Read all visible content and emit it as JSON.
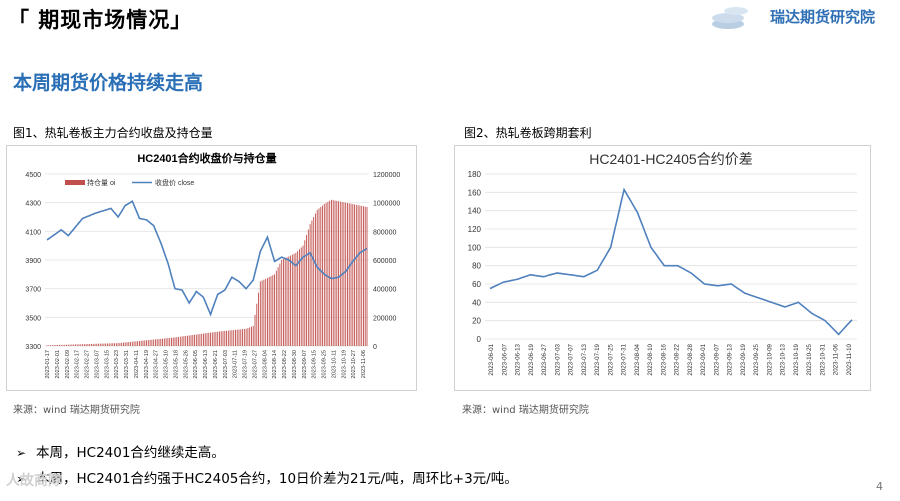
{
  "header": {
    "title": "「 期现市场情况」",
    "logo_text": "瑞达期货研究院"
  },
  "subtitle": "本周期货价格持续走高",
  "figures": {
    "fig1_caption": "图1、热轧卷板主力合约收盘及持仓量",
    "fig2_caption": "图2、热轧卷板跨期套利",
    "fig1_source": "来源：wind    瑞达期货研究院",
    "fig2_source": "来源：wind    瑞达期货研究院"
  },
  "bullets": [
    "本周，HC2401合约继续走高。",
    "本周，HC2401合约强于HC2405合约，10日价差为21元/吨，周环比+3元/吨。"
  ],
  "page_number": "4",
  "watermark": "人故商隊",
  "colors": {
    "accent": "#2a6fb6",
    "bar": "#c0504d",
    "line": "#4f81bd"
  },
  "chart_data": [
    {
      "type": "bar+line",
      "title": "HC2401合约收盘价与持仓量",
      "legend": [
        "持仓量 oi",
        "收盘价 close"
      ],
      "legend_position": "top-left",
      "grid": true,
      "y_left": {
        "lim": [
          3300,
          4500
        ],
        "ticks": [
          "3300",
          "3500",
          "3700",
          "3900",
          "4100",
          "4300",
          "4500"
        ]
      },
      "y_right": {
        "lim": [
          0,
          1200000
        ],
        "ticks": [
          "0",
          "200000",
          "400000",
          "600000",
          "800000",
          "1000000",
          "1200000"
        ]
      },
      "x_ticks": [
        "2023-01-17",
        "2023-02-01",
        "2023-02-09",
        "2023-02-17",
        "2023-02-27",
        "2023-03-07",
        "2023-03-15",
        "2023-03-23",
        "2023-03-31",
        "2023-04-11",
        "2023-04-19",
        "2023-04-27",
        "2023-05-10",
        "2023-05-18",
        "2023-05-26",
        "2023-06-05",
        "2023-06-13",
        "2023-06-21",
        "2023-07-03",
        "2023-07-11",
        "2023-07-19",
        "2023-07-27",
        "2023-08-04",
        "2023-08-14",
        "2023-08-22",
        "2023-08-30",
        "2023-09-07",
        "2023-09-15",
        "2023-09-25",
        "2023-10-11",
        "2023-10-19",
        "2023-10-27",
        "2023-11-06"
      ],
      "close_points": [
        {
          "i": 0,
          "v": 4040
        },
        {
          "i": 2,
          "v": 4110
        },
        {
          "i": 3,
          "v": 4070
        },
        {
          "i": 5,
          "v": 4190
        },
        {
          "i": 7,
          "v": 4230
        },
        {
          "i": 9,
          "v": 4260
        },
        {
          "i": 10,
          "v": 4200
        },
        {
          "i": 11,
          "v": 4280
        },
        {
          "i": 12,
          "v": 4310
        },
        {
          "i": 13,
          "v": 4190
        },
        {
          "i": 14,
          "v": 4180
        },
        {
          "i": 15,
          "v": 4140
        },
        {
          "i": 16,
          "v": 4020
        },
        {
          "i": 17,
          "v": 3880
        },
        {
          "i": 18,
          "v": 3700
        },
        {
          "i": 19,
          "v": 3690
        },
        {
          "i": 20,
          "v": 3600
        },
        {
          "i": 21,
          "v": 3680
        },
        {
          "i": 22,
          "v": 3640
        },
        {
          "i": 23,
          "v": 3520
        },
        {
          "i": 24,
          "v": 3660
        },
        {
          "i": 25,
          "v": 3690
        },
        {
          "i": 26,
          "v": 3780
        },
        {
          "i": 27,
          "v": 3750
        },
        {
          "i": 28,
          "v": 3700
        },
        {
          "i": 29,
          "v": 3760
        },
        {
          "i": 30,
          "v": 3960
        },
        {
          "i": 31,
          "v": 4060
        },
        {
          "i": 32,
          "v": 3890
        },
        {
          "i": 33,
          "v": 3920
        },
        {
          "i": 34,
          "v": 3900
        },
        {
          "i": 35,
          "v": 3860
        },
        {
          "i": 36,
          "v": 3920
        },
        {
          "i": 37,
          "v": 3950
        },
        {
          "i": 38,
          "v": 3850
        },
        {
          "i": 39,
          "v": 3800
        },
        {
          "i": 40,
          "v": 3770
        },
        {
          "i": 41,
          "v": 3780
        },
        {
          "i": 42,
          "v": 3820
        },
        {
          "i": 43,
          "v": 3890
        },
        {
          "i": 44,
          "v": 3950
        },
        {
          "i": 45,
          "v": 3980
        }
      ],
      "oi_points": [
        {
          "i": 0,
          "v": 5000
        },
        {
          "i": 10,
          "v": 20000
        },
        {
          "i": 18,
          "v": 60000
        },
        {
          "i": 24,
          "v": 100000
        },
        {
          "i": 28,
          "v": 120000
        },
        {
          "i": 29,
          "v": 140000
        },
        {
          "i": 30,
          "v": 450000
        },
        {
          "i": 32,
          "v": 500000
        },
        {
          "i": 33,
          "v": 600000
        },
        {
          "i": 35,
          "v": 650000
        },
        {
          "i": 36,
          "v": 700000
        },
        {
          "i": 37,
          "v": 850000
        },
        {
          "i": 38,
          "v": 950000
        },
        {
          "i": 39,
          "v": 990000
        },
        {
          "i": 40,
          "v": 1020000
        },
        {
          "i": 42,
          "v": 1000000
        },
        {
          "i": 44,
          "v": 980000
        },
        {
          "i": 45,
          "v": 970000
        }
      ]
    },
    {
      "type": "line",
      "title": "HC2401-HC2405合约价差",
      "grid": true,
      "ylim": [
        0,
        180
      ],
      "y_ticks": [
        "0",
        "20",
        "40",
        "60",
        "80",
        "100",
        "120",
        "140",
        "160",
        "180"
      ],
      "x_ticks": [
        "2023-06-01",
        "2023-06-07",
        "2023-06-13",
        "2023-06-19",
        "2023-06-27",
        "2023-07-03",
        "2023-07-07",
        "2023-07-13",
        "2023-07-19",
        "2023-07-25",
        "2023-07-31",
        "2023-08-04",
        "2023-08-10",
        "2023-08-16",
        "2023-08-22",
        "2023-08-28",
        "2023-09-01",
        "2023-09-07",
        "2023-09-13",
        "2023-09-19",
        "2023-09-25",
        "2023-10-09",
        "2023-10-13",
        "2023-10-19",
        "2023-10-25",
        "2023-10-31",
        "2023-11-06",
        "2023-11-10"
      ],
      "points": [
        {
          "i": 0,
          "v": 55
        },
        {
          "i": 1,
          "v": 62
        },
        {
          "i": 2,
          "v": 65
        },
        {
          "i": 3,
          "v": 70
        },
        {
          "i": 4,
          "v": 68
        },
        {
          "i": 5,
          "v": 72
        },
        {
          "i": 6,
          "v": 70
        },
        {
          "i": 7,
          "v": 68
        },
        {
          "i": 8,
          "v": 75
        },
        {
          "i": 9,
          "v": 100
        },
        {
          "i": 10,
          "v": 163
        },
        {
          "i": 11,
          "v": 138
        },
        {
          "i": 12,
          "v": 100
        },
        {
          "i": 13,
          "v": 80
        },
        {
          "i": 14,
          "v": 80
        },
        {
          "i": 15,
          "v": 72
        },
        {
          "i": 16,
          "v": 60
        },
        {
          "i": 17,
          "v": 58
        },
        {
          "i": 18,
          "v": 60
        },
        {
          "i": 19,
          "v": 50
        },
        {
          "i": 20,
          "v": 45
        },
        {
          "i": 21,
          "v": 40
        },
        {
          "i": 22,
          "v": 35
        },
        {
          "i": 23,
          "v": 40
        },
        {
          "i": 24,
          "v": 28
        },
        {
          "i": 25,
          "v": 20
        },
        {
          "i": 26,
          "v": 5
        },
        {
          "i": 27,
          "v": 21
        }
      ]
    }
  ]
}
